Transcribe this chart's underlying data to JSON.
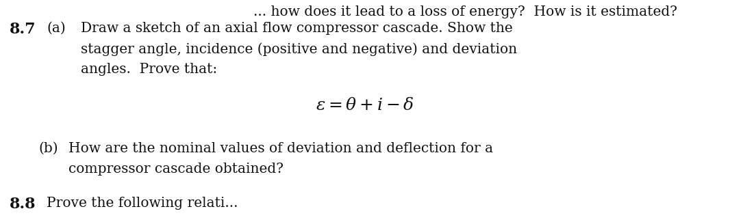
{
  "bg_color": "#ffffff",
  "top_text": "... how does it lead to a loss of energy?  How is it estimated?",
  "line1_num": "8.7",
  "line1_label": "(a)",
  "line1_text": "Draw a sketch of an axial flow compressor cascade. Show the",
  "line2_text": "stagger angle, incidence (positive and negative) and deviation",
  "line3_text": "angles.  Prove that:",
  "equation": "$\\varepsilon = \\theta + i - \\delta$",
  "line4_label": "(b)",
  "line4_text": "How are the nominal values of deviation and deflection for a",
  "line5_text": "compressor cascade obtained?",
  "line6_num": "8.8",
  "line6_text": "Prove the following relati...",
  "font_size_body": 14.5,
  "font_size_eq": 18,
  "font_size_num": 16,
  "font_size_top": 14.5,
  "text_color": "#111111"
}
